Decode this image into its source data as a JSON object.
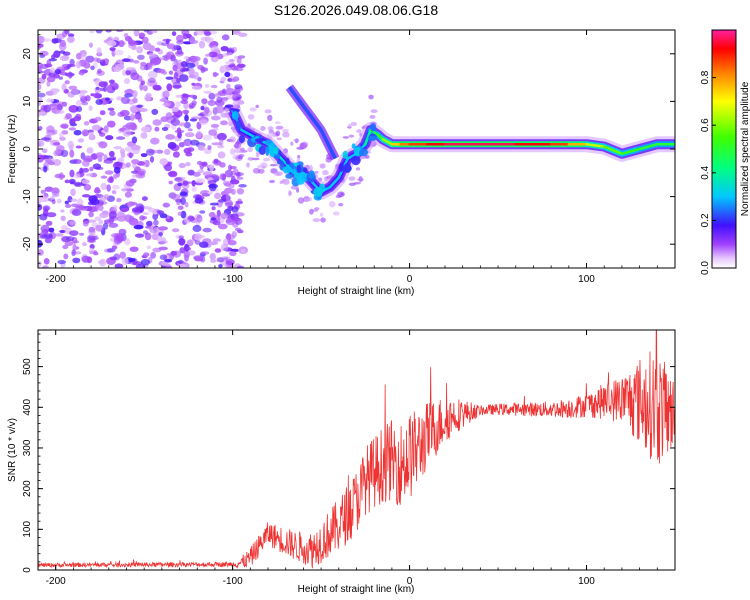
{
  "title": "S126.2026.049.08.06.G18",
  "chart_data": [
    {
      "type": "heatmap",
      "id": "spectrogram",
      "xlabel": "Height of straight line (km)",
      "ylabel": "Frequency (Hz)",
      "xlim": [
        -210,
        150
      ],
      "ylim": [
        -25,
        25
      ],
      "xticks": [
        -200,
        -100,
        0,
        100
      ],
      "yticks": [
        -20,
        -10,
        0,
        10,
        20
      ],
      "colorbar": {
        "label": "Normalized spectral amplitude",
        "range": [
          0.0,
          1.0
        ],
        "ticks": [
          0.0,
          0.2,
          0.4,
          0.6,
          0.8
        ],
        "tick_labels": [
          "0.0",
          "0.2",
          "0.4",
          "0.6",
          "0.8"
        ]
      },
      "ridge": {
        "x": [
          -100,
          -95,
          -90,
          -85,
          -80,
          -75,
          -70,
          -65,
          -60,
          -55,
          -50,
          -45,
          -40,
          -35,
          -30,
          -25,
          -22,
          -18,
          -15,
          -10,
          -5,
          0,
          10,
          20,
          40,
          60,
          80,
          90,
          100,
          110,
          120,
          130,
          140,
          150
        ],
        "y": [
          8,
          4,
          3,
          2,
          1,
          -1,
          -3,
          -5,
          -5,
          -7,
          -9,
          -8,
          -6,
          -2,
          -1,
          1,
          4,
          3,
          2,
          1,
          1,
          1,
          1,
          1,
          1,
          1,
          1,
          1,
          1,
          0.5,
          -1,
          0,
          1,
          1
        ],
        "amplitude": [
          0.25,
          0.3,
          0.3,
          0.35,
          0.35,
          0.35,
          0.35,
          0.3,
          0.3,
          0.3,
          0.3,
          0.3,
          0.3,
          0.3,
          0.3,
          0.35,
          0.45,
          0.5,
          0.55,
          0.7,
          0.8,
          0.85,
          0.9,
          0.95,
          0.97,
          0.95,
          0.9,
          0.85,
          0.7,
          0.6,
          0.55,
          0.5,
          0.5,
          0.5
        ]
      },
      "secondary_ridge": {
        "x": [
          -68,
          -62,
          -56,
          -50,
          -46,
          -42
        ],
        "y": [
          13,
          10,
          7,
          4,
          1,
          -2
        ]
      },
      "noise_region_x": [
        -210,
        -100
      ]
    },
    {
      "type": "line",
      "id": "snr",
      "xlabel": "Height of straight line (km)",
      "ylabel": "SNR (10 * v/v)",
      "xlim": [
        -210,
        150
      ],
      "ylim": [
        0,
        590
      ],
      "xticks": [
        -200,
        -100,
        0,
        100
      ],
      "yticks": [
        0,
        100,
        200,
        300,
        400,
        500
      ],
      "series": [
        {
          "name": "SNR",
          "color": "#ee3333",
          "envelope": {
            "x": [
              -210,
              -100,
              -95,
              -90,
              -85,
              -80,
              -75,
              -70,
              -65,
              -60,
              -55,
              -50,
              -45,
              -40,
              -35,
              -30,
              -25,
              -20,
              -15,
              -10,
              -5,
              0,
              5,
              10,
              15,
              20,
              25,
              30,
              40,
              50,
              60,
              70,
              80,
              90,
              100,
              110,
              120,
              130,
              135,
              140,
              145,
              150
            ],
            "y": [
              12,
              14,
              18,
              30,
              60,
              90,
              80,
              70,
              60,
              55,
              50,
              70,
              90,
              110,
              140,
              170,
              220,
              240,
              260,
              270,
              260,
              280,
              300,
              330,
              350,
              370,
              380,
              385,
              392,
              395,
              395,
              395,
              395,
              398,
              405,
              415,
              420,
              415,
              410,
              400,
              390,
              385
            ]
          },
          "noise_amp": {
            "x": [
              -210,
              -100,
              -90,
              -60,
              -30,
              0,
              20,
              40,
              80,
              100,
              120,
              130,
              140,
              150
            ],
            "y": [
              5,
              6,
              25,
              40,
              80,
              110,
              60,
              12,
              20,
              30,
              60,
              110,
              150,
              80
            ]
          }
        }
      ]
    }
  ]
}
